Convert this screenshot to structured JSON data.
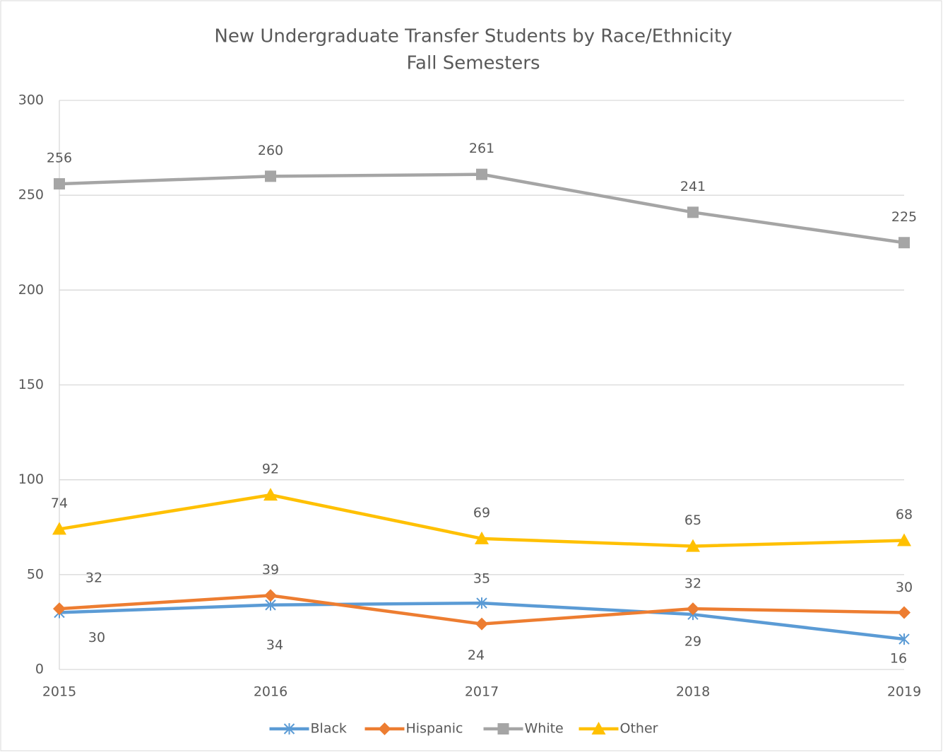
{
  "chart_data": {
    "type": "line",
    "title": "New Undergraduate Transfer Students by Race/Ethnicity",
    "subtitle": "Fall Semesters",
    "categories": [
      "2015",
      "2016",
      "2017",
      "2018",
      "2019"
    ],
    "series": [
      {
        "name": "Black",
        "color": "#5b9bd5",
        "marker": "star",
        "values": [
          30,
          34,
          35,
          29,
          16
        ]
      },
      {
        "name": "Hispanic",
        "color": "#ed7d31",
        "marker": "diamond",
        "values": [
          32,
          39,
          24,
          32,
          30
        ]
      },
      {
        "name": "White",
        "color": "#a5a5a5",
        "marker": "square",
        "values": [
          256,
          260,
          261,
          241,
          225
        ]
      },
      {
        "name": "Other",
        "color": "#ffc000",
        "marker": "triangle",
        "values": [
          74,
          92,
          69,
          65,
          68
        ]
      }
    ],
    "ylim": [
      0,
      300
    ],
    "yticks": [
      0,
      50,
      100,
      150,
      200,
      250,
      300
    ],
    "grid": true,
    "legend": "bottom",
    "data_labels": true
  }
}
